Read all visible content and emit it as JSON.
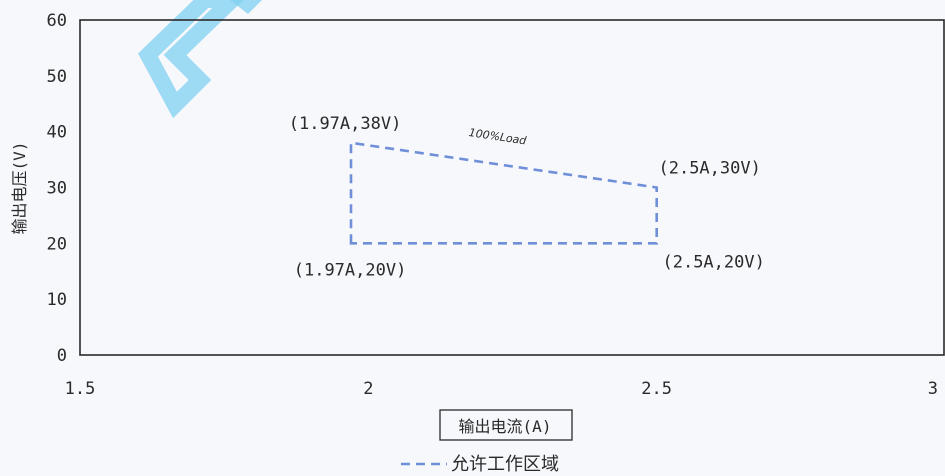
{
  "chart_data": {
    "type": "line",
    "title": "",
    "xlabel": "输出电流(A)",
    "ylabel": "输出电压(V)",
    "xlim": [
      1.5,
      3
    ],
    "ylim": [
      0,
      60
    ],
    "xticks": [
      {
        "value": 1.5,
        "label": "1.5"
      },
      {
        "value": 2,
        "label": "2"
      },
      {
        "value": 2.5,
        "label": "2.5"
      },
      {
        "value": 3,
        "label": "3"
      }
    ],
    "yticks": [
      {
        "value": 0,
        "label": "0"
      },
      {
        "value": 10,
        "label": "10"
      },
      {
        "value": 20,
        "label": "20"
      },
      {
        "value": 30,
        "label": "30"
      },
      {
        "value": 40,
        "label": "40"
      },
      {
        "value": 50,
        "label": "50"
      },
      {
        "value": 60,
        "label": "60"
      }
    ],
    "grid": false,
    "legend_position": "bottom-center",
    "series": [
      {
        "name": "允许工作区域",
        "color": "#6f8fd8",
        "line_style": "dashed",
        "points": [
          {
            "x": 1.97,
            "y": 20
          },
          {
            "x": 1.97,
            "y": 38
          },
          {
            "x": 2.5,
            "y": 30
          },
          {
            "x": 2.5,
            "y": 20
          }
        ],
        "closed": true
      }
    ],
    "annotations": [
      {
        "id": "pt-1-97-38",
        "x": 1.97,
        "y": 38,
        "text": "(1.97A,38V)",
        "anchor": "upper-left"
      },
      {
        "id": "pt-2-5-30",
        "x": 2.5,
        "y": 30,
        "text": "(2.5A,30V)",
        "anchor": "upper-right"
      },
      {
        "id": "pt-1-97-20",
        "x": 1.97,
        "y": 20,
        "text": "(1.97A,20V)",
        "anchor": "lower-left"
      },
      {
        "id": "pt-2-5-20",
        "x": 2.5,
        "y": 20,
        "text": "(2.5A,20V)",
        "anchor": "lower-right"
      },
      {
        "id": "load-label",
        "x": 2.23,
        "y": 34,
        "text": "100%Load",
        "anchor": "slanted"
      }
    ],
    "watermark_color": "#7fd0f0",
    "axis_color": "#2a2a2a"
  }
}
